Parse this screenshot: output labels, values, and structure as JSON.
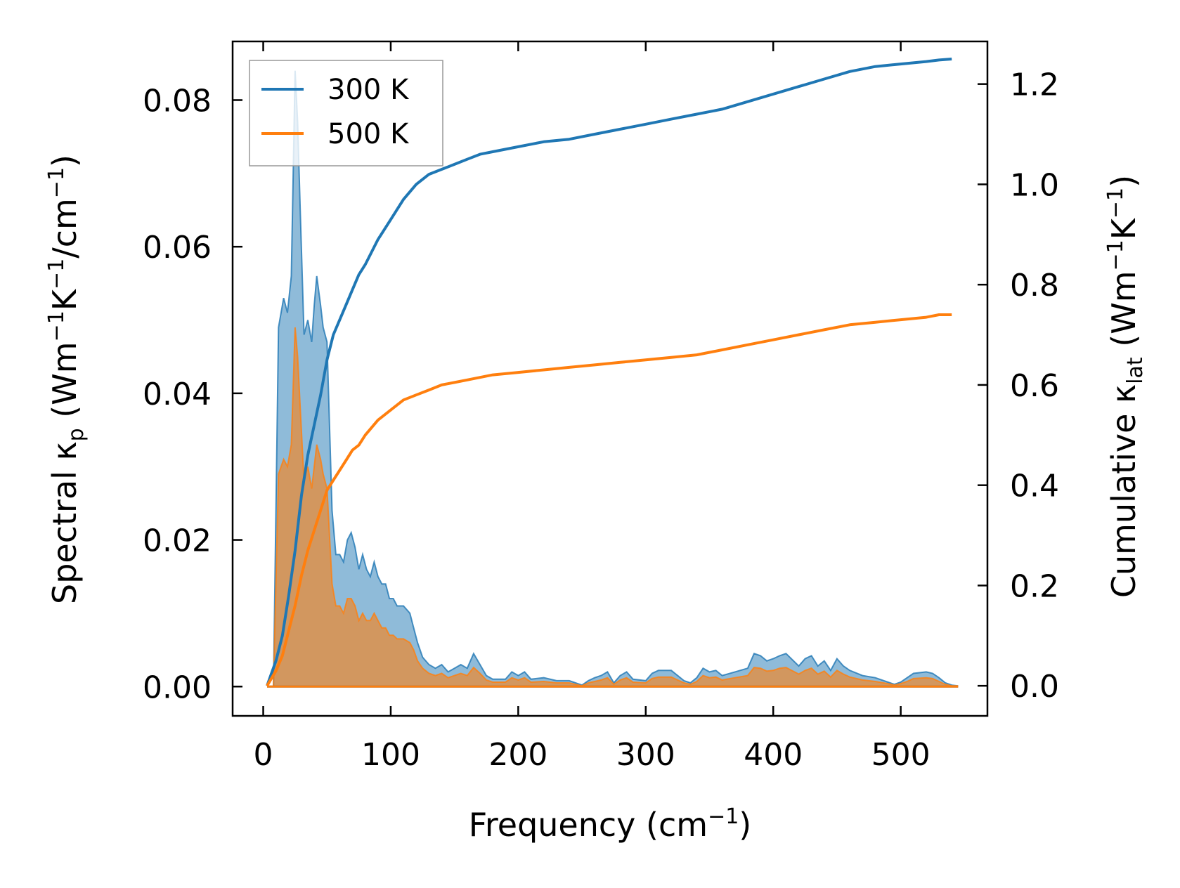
{
  "chart_data": {
    "type": "line",
    "xlabel": "Frequency (cm",
    "xlabel_sup": "−1",
    "xlabel_end": ")",
    "ylabel": {
      "p1": "Spectral κ",
      "sub1": "p",
      "p2": " (Wm",
      "sup1": "−1",
      "p3": "K",
      "sup2": "−1",
      "p4": "/cm",
      "sup3": "−1",
      "p5": ")"
    },
    "y2label": {
      "p1": "Cumulative κ",
      "sub1": "lat",
      "p2": " (Wm",
      "sup1": "−1",
      "p3": "K",
      "sup2": "−1",
      "p4": ")"
    },
    "xlim": [
      -24,
      568
    ],
    "ylim": [
      -0.004,
      0.088
    ],
    "y2lim": [
      -0.06,
      1.285
    ],
    "xticks": [
      "0",
      "100",
      "200",
      "300",
      "400",
      "500"
    ],
    "xtick_values": [
      0,
      100,
      200,
      300,
      400,
      500
    ],
    "yticks": [
      "0.00",
      "0.02",
      "0.04",
      "0.06",
      "0.08"
    ],
    "ytick_values": [
      0,
      0.02,
      0.04,
      0.06,
      0.08
    ],
    "y2ticks": [
      "0.0",
      "0.2",
      "0.4",
      "0.6",
      "0.8",
      "1.0",
      "1.2"
    ],
    "y2tick_values": [
      0,
      0.2,
      0.4,
      0.6,
      0.8,
      1.0,
      1.2
    ],
    "legend": {
      "position": "upper-left",
      "entries": [
        "300 K",
        "500 K"
      ]
    },
    "colors": {
      "300K": "#1f77b4",
      "500K": "#ff7f0e",
      "fill300": "#1f77b4",
      "fill500": "#ff7f0e"
    },
    "spectral": {
      "x": [
        3,
        8,
        12,
        16,
        19,
        22,
        25,
        27,
        29,
        32,
        35,
        38,
        40,
        42,
        45,
        47,
        50,
        54,
        57,
        60,
        63,
        66,
        69,
        72,
        75,
        78,
        81,
        84,
        87,
        90,
        93,
        96,
        99,
        102,
        105,
        110,
        115,
        118,
        121,
        125,
        130,
        135,
        140,
        145,
        150,
        155,
        160,
        165,
        170,
        175,
        180,
        190,
        195,
        200,
        205,
        210,
        220,
        230,
        240,
        250,
        255,
        260,
        265,
        270,
        275,
        280,
        285,
        290,
        300,
        305,
        310,
        320,
        330,
        335,
        340,
        345,
        350,
        355,
        360,
        370,
        380,
        385,
        390,
        395,
        400,
        405,
        410,
        420,
        425,
        430,
        435,
        440,
        445,
        450,
        455,
        460,
        470,
        480,
        490,
        495,
        500,
        505,
        510,
        520,
        525,
        530,
        535,
        540,
        545
      ],
      "series": [
        {
          "name": "300 K",
          "values": [
            0,
            0,
            0.049,
            0.053,
            0.051,
            0.056,
            0.084,
            0.077,
            0.065,
            0.048,
            0.05,
            0.047,
            0.052,
            0.056,
            0.052,
            0.049,
            0.047,
            0.024,
            0.018,
            0.018,
            0.017,
            0.02,
            0.021,
            0.019,
            0.016,
            0.018,
            0.016,
            0.015,
            0.017,
            0.015,
            0.014,
            0.014,
            0.012,
            0.012,
            0.011,
            0.011,
            0.01,
            0.008,
            0.006,
            0.004,
            0.003,
            0.0025,
            0.003,
            0.002,
            0.0025,
            0.003,
            0.0025,
            0.0045,
            0.003,
            0.0015,
            0.001,
            0.001,
            0.002,
            0.0015,
            0.002,
            0.001,
            0.0012,
            0.0008,
            0.0008,
            0.0002,
            0.0008,
            0.0012,
            0.0015,
            0.002,
            0.0005,
            0.0015,
            0.002,
            0.001,
            0.0008,
            0.0018,
            0.0022,
            0.0022,
            0.0008,
            0.0005,
            0.0012,
            0.0025,
            0.002,
            0.0022,
            0.0015,
            0.002,
            0.0025,
            0.0045,
            0.0042,
            0.0035,
            0.0038,
            0.0042,
            0.0045,
            0.0028,
            0.0038,
            0.0042,
            0.0028,
            0.0035,
            0.0022,
            0.0038,
            0.0028,
            0.0022,
            0.0015,
            0.0012,
            0.0006,
            0.0003,
            0.0006,
            0.0012,
            0.0018,
            0.002,
            0.0018,
            0.0012,
            0.0005,
            0.0002,
            0.0001
          ]
        },
        {
          "name": "500 K",
          "values": [
            0,
            0,
            0.029,
            0.031,
            0.03,
            0.033,
            0.049,
            0.045,
            0.038,
            0.028,
            0.03,
            0.027,
            0.03,
            0.033,
            0.031,
            0.029,
            0.027,
            0.014,
            0.011,
            0.011,
            0.01,
            0.012,
            0.012,
            0.011,
            0.009,
            0.01,
            0.009,
            0.009,
            0.01,
            0.009,
            0.008,
            0.008,
            0.007,
            0.007,
            0.0065,
            0.0065,
            0.006,
            0.005,
            0.0035,
            0.0025,
            0.0018,
            0.0015,
            0.0018,
            0.0012,
            0.0015,
            0.0018,
            0.0015,
            0.0026,
            0.0018,
            0.0009,
            0.0006,
            0.0006,
            0.0012,
            0.0009,
            0.0012,
            0.0006,
            0.0007,
            0.0005,
            0.0005,
            0.0001,
            0.0005,
            0.0007,
            0.0009,
            0.0012,
            0.0003,
            0.0009,
            0.0012,
            0.0006,
            0.0005,
            0.0011,
            0.0013,
            0.0013,
            0.0005,
            0.0003,
            0.0007,
            0.0015,
            0.0012,
            0.0013,
            0.0009,
            0.0012,
            0.0015,
            0.0026,
            0.0025,
            0.0021,
            0.0022,
            0.0025,
            0.0026,
            0.0017,
            0.0022,
            0.0025,
            0.0017,
            0.0021,
            0.0013,
            0.0022,
            0.0017,
            0.0013,
            0.0009,
            0.0007,
            0.0004,
            0.0002,
            0.0004,
            0.0007,
            0.0011,
            0.0012,
            0.0011,
            0.0007,
            0.0003,
            0.0001,
            0.0001
          ]
        }
      ]
    },
    "cumulative": {
      "x": [
        3,
        10,
        15,
        20,
        25,
        30,
        35,
        40,
        45,
        50,
        55,
        60,
        65,
        70,
        75,
        80,
        90,
        100,
        110,
        120,
        130,
        140,
        150,
        160,
        170,
        180,
        200,
        220,
        240,
        260,
        280,
        300,
        320,
        340,
        360,
        380,
        400,
        420,
        440,
        460,
        480,
        500,
        520,
        530,
        540
      ],
      "series": [
        {
          "name": "300 K",
          "values": [
            0,
            0.05,
            0.1,
            0.18,
            0.27,
            0.38,
            0.46,
            0.52,
            0.58,
            0.65,
            0.7,
            0.73,
            0.76,
            0.79,
            0.82,
            0.84,
            0.89,
            0.93,
            0.97,
            1.0,
            1.02,
            1.03,
            1.04,
            1.05,
            1.06,
            1.065,
            1.075,
            1.085,
            1.09,
            1.1,
            1.11,
            1.12,
            1.13,
            1.14,
            1.15,
            1.165,
            1.18,
            1.195,
            1.21,
            1.225,
            1.235,
            1.24,
            1.245,
            1.248,
            1.25
          ]
        },
        {
          "name": "500 K",
          "values": [
            0,
            0.03,
            0.06,
            0.11,
            0.16,
            0.22,
            0.27,
            0.31,
            0.35,
            0.39,
            0.41,
            0.43,
            0.45,
            0.47,
            0.48,
            0.5,
            0.53,
            0.55,
            0.57,
            0.58,
            0.59,
            0.6,
            0.605,
            0.61,
            0.615,
            0.62,
            0.625,
            0.63,
            0.635,
            0.64,
            0.645,
            0.65,
            0.655,
            0.66,
            0.67,
            0.68,
            0.69,
            0.7,
            0.71,
            0.72,
            0.725,
            0.73,
            0.735,
            0.74,
            0.74
          ]
        }
      ]
    }
  }
}
